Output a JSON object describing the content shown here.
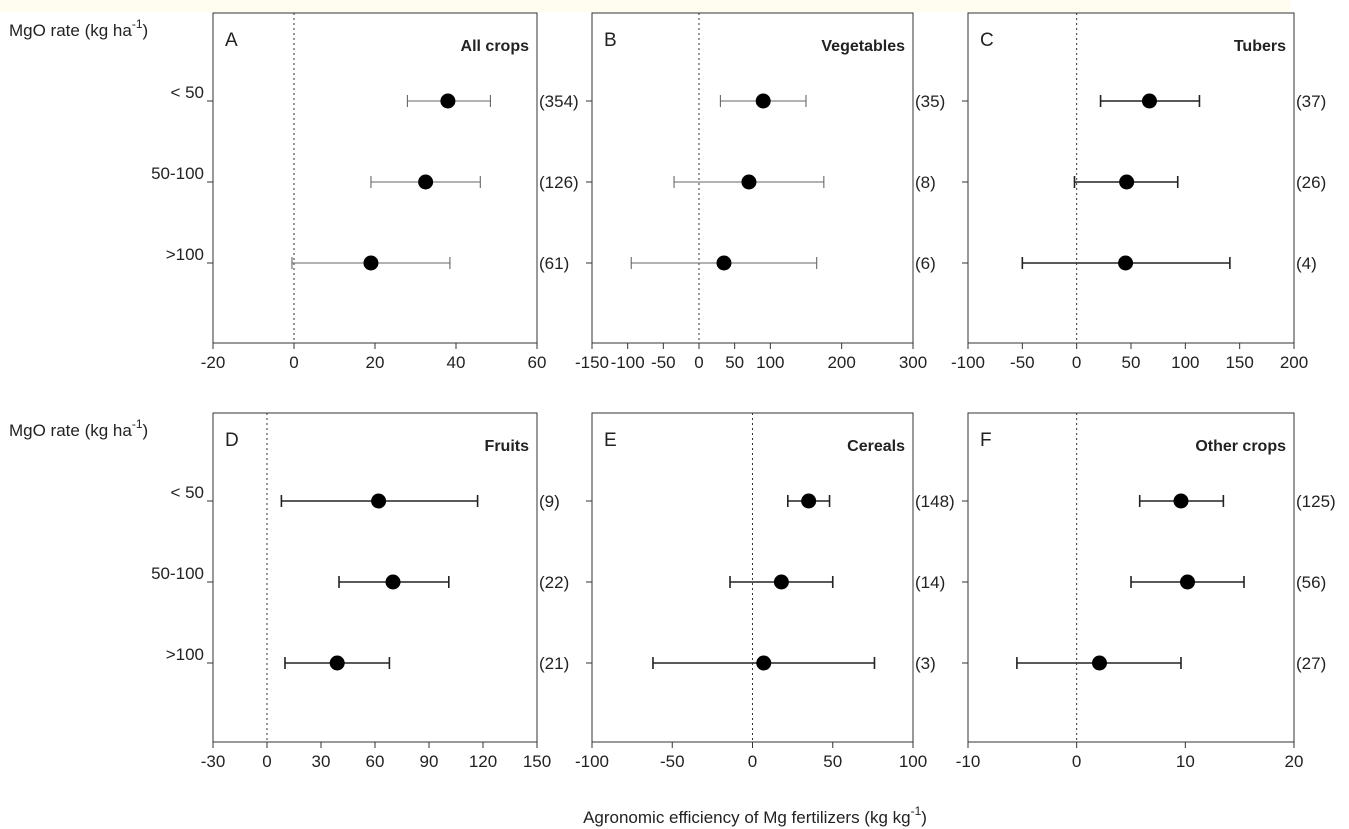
{
  "figure": {
    "row_axis_title": "MgO rate (kg ha",
    "row_axis_title_sup": "-1",
    "row_axis_title_close": ")",
    "x_axis_title": "Agronomic efficiency of Mg fertilizers (kg kg",
    "x_axis_title_sup": "-1",
    "x_axis_title_close": ")"
  },
  "chart_data": [
    {
      "type": "scatter",
      "panel": "A",
      "title": "All crops",
      "categories": [
        "< 50",
        "50-100",
        ">100"
      ],
      "mean": [
        38,
        32.5,
        19
      ],
      "ci_low": [
        28,
        19,
        -0.5
      ],
      "ci_high": [
        48.5,
        46,
        38.5
      ],
      "n": [
        "(354)",
        "(126)",
        "(61)"
      ],
      "xlim": [
        -20,
        60
      ],
      "xticks": [
        -20,
        0,
        20,
        40,
        60
      ],
      "bar_color": "#666666"
    },
    {
      "type": "scatter",
      "panel": "B",
      "title": "Vegetables",
      "categories": [
        "< 50",
        "50-100",
        ">100"
      ],
      "mean": [
        90,
        70,
        35
      ],
      "ci_low": [
        30,
        -35,
        -95
      ],
      "ci_high": [
        150,
        175,
        165
      ],
      "n": [
        "(35)",
        "(8)",
        "(6)"
      ],
      "xlim": [
        -150,
        300
      ],
      "xticks": [
        -150,
        -100,
        -50,
        0,
        50,
        100,
        200,
        300
      ],
      "bar_color": "#666666"
    },
    {
      "type": "scatter",
      "panel": "C",
      "title": "Tubers",
      "categories": [
        "< 50",
        "50-100",
        ">100"
      ],
      "mean": [
        67,
        46,
        45
      ],
      "ci_low": [
        22,
        -2,
        -50
      ],
      "ci_high": [
        113,
        93,
        141
      ],
      "n": [
        "(37)",
        "(26)",
        "(4)"
      ],
      "xlim": [
        -100,
        200
      ],
      "xticks": [
        -100,
        -50,
        0,
        50,
        100,
        150,
        200
      ],
      "bar_color": "#222222"
    },
    {
      "type": "scatter",
      "panel": "D",
      "title": "Fruits",
      "categories": [
        "< 50",
        "50-100",
        ">100"
      ],
      "mean": [
        62,
        70,
        39
      ],
      "ci_low": [
        8,
        40,
        10
      ],
      "ci_high": [
        117,
        101,
        68
      ],
      "n": [
        "(9)",
        "(22)",
        "(21)"
      ],
      "xlim": [
        -30,
        150
      ],
      "xticks": [
        -30,
        0,
        30,
        60,
        90,
        120,
        150
      ],
      "bar_color": "#222222"
    },
    {
      "type": "scatter",
      "panel": "E",
      "title": "Cereals",
      "categories": [
        "< 50",
        "50-100",
        ">100"
      ],
      "mean": [
        35,
        18,
        7
      ],
      "ci_low": [
        22,
        -14,
        -62
      ],
      "ci_high": [
        48,
        50,
        76
      ],
      "n": [
        "(148)",
        "(14)",
        "(3)"
      ],
      "xlim": [
        -100,
        100
      ],
      "xticks": [
        -100,
        -50,
        0,
        50,
        100
      ],
      "bar_color": "#222222"
    },
    {
      "type": "scatter",
      "panel": "F",
      "title": "Other crops",
      "categories": [
        "< 50",
        "50-100",
        ">100"
      ],
      "mean": [
        9.6,
        10.2,
        2.1
      ],
      "ci_low": [
        5.8,
        5.0,
        -5.5
      ],
      "ci_high": [
        13.5,
        15.4,
        9.6
      ],
      "n": [
        "(125)",
        "(56)",
        "(27)"
      ],
      "xlim": [
        -10,
        20
      ],
      "xticks": [
        -10,
        0,
        10,
        20
      ],
      "bar_color": "#222222"
    }
  ]
}
